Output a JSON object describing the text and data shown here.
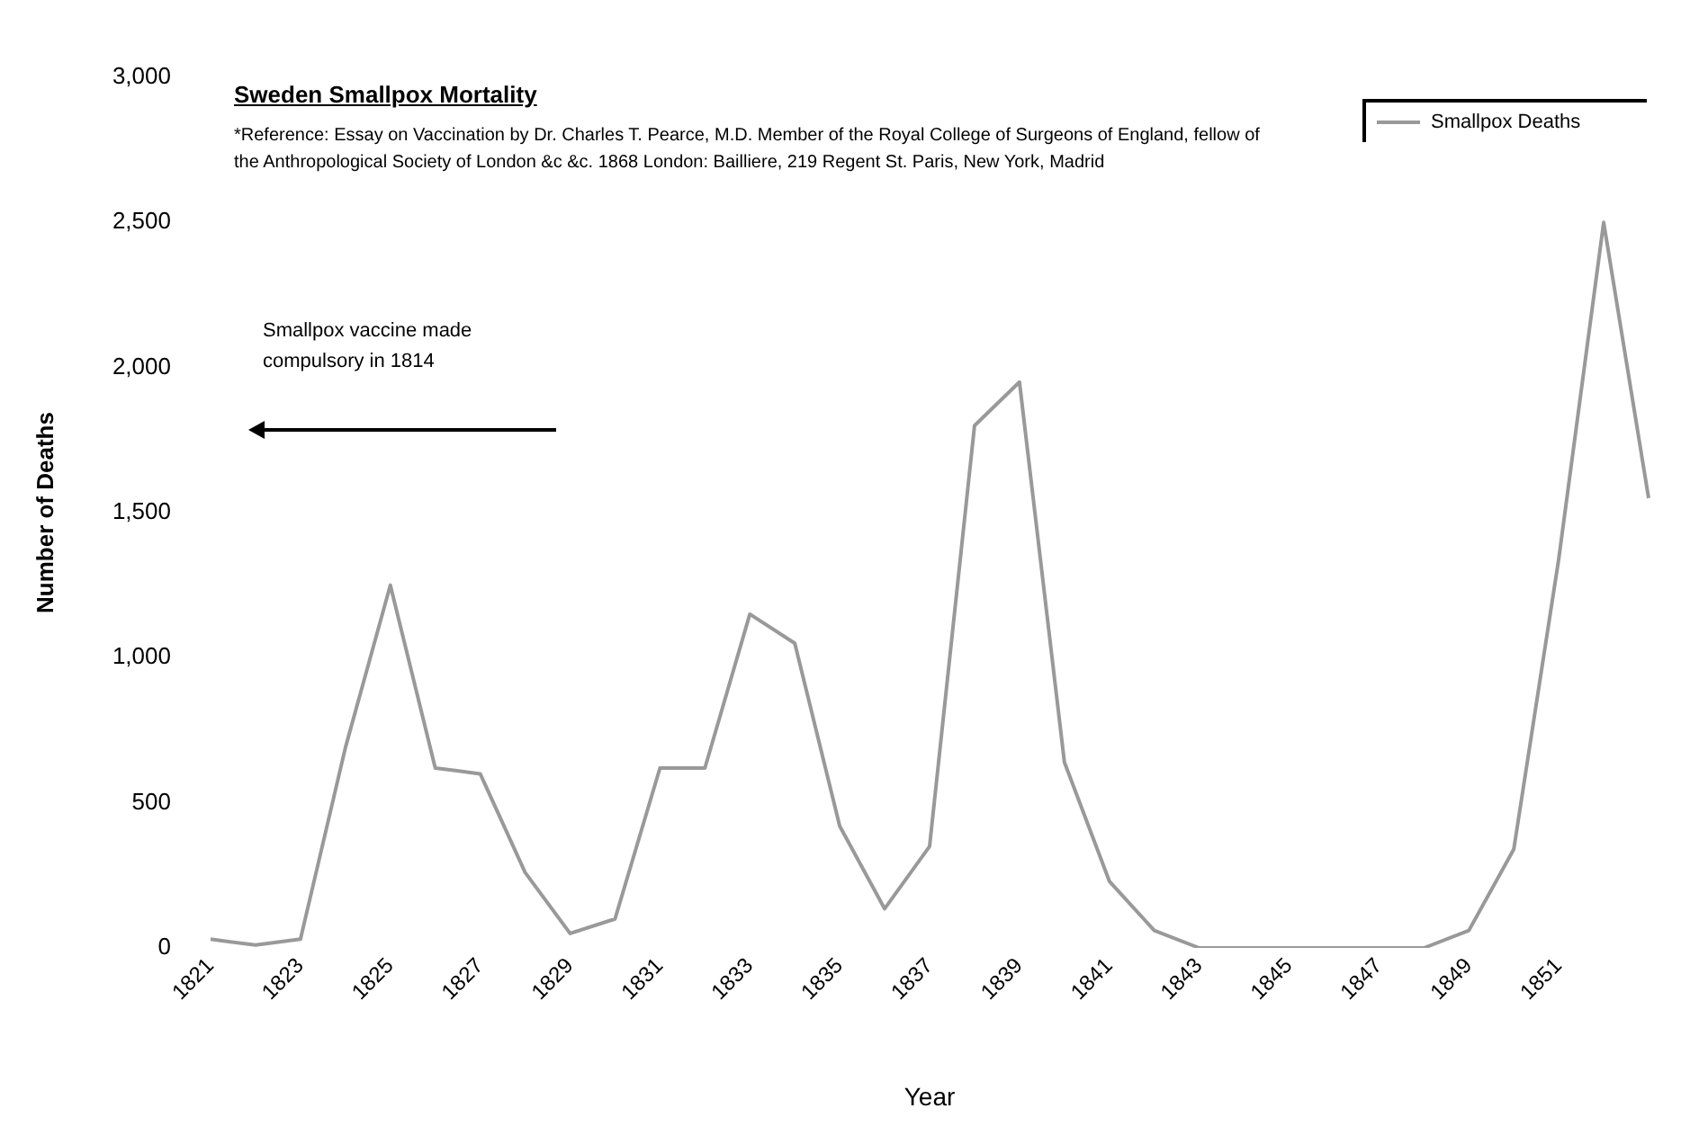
{
  "chart_data": {
    "type": "line",
    "title": "Sweden Smallpox Mortality",
    "subtitle": "*Reference: Essay on Vaccination by Dr. Charles T. Pearce, M.D. Member of the Royal College of Surgeons of England, fellow of the Anthropological Society of London &c &c. 1868 London: Bailliere, 219 Regent St. Paris, New York, Madrid",
    "xlabel": "Year",
    "ylabel": "Number of Deaths",
    "annotations": [
      "Smallpox vaccine made compulsory in 1814"
    ],
    "categories": [
      "1821",
      null,
      "1823",
      null,
      "1825",
      null,
      "1827",
      null,
      "1829",
      null,
      "1831",
      null,
      "1833",
      null,
      "1835",
      null,
      "1837",
      null,
      "1839",
      null,
      "1841",
      null,
      "1843",
      null,
      "1845",
      null,
      "1847",
      null,
      "1849",
      null,
      "1851",
      null,
      null
    ],
    "series": [
      {
        "name": "Smallpox Deaths",
        "color": "#999999",
        "values": [
          30,
          10,
          30,
          690,
          1250,
          620,
          600,
          260,
          50,
          100,
          620,
          620,
          1150,
          1050,
          420,
          135,
          350,
          1800,
          1950,
          640,
          230,
          60,
          0,
          0,
          0,
          0,
          0,
          0,
          60,
          340,
          1340,
          2500,
          1550
        ]
      }
    ],
    "ylim": [
      0,
      3000
    ],
    "yticks": [
      {
        "value": 0,
        "label": "0"
      },
      {
        "value": 500,
        "label": "500"
      },
      {
        "value": 1000,
        "label": "1,000"
      },
      {
        "value": 1500,
        "label": "1,500"
      },
      {
        "value": 2000,
        "label": "2,000"
      },
      {
        "value": 2500,
        "label": "2,500"
      },
      {
        "value": 3000,
        "label": "3,000"
      }
    ],
    "grid": false,
    "legend": "top right",
    "marker": "none",
    "line_style": "solid"
  }
}
